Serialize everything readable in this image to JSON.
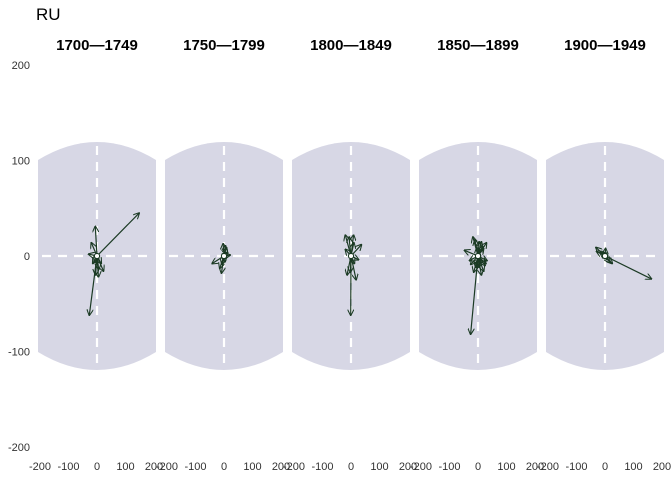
{
  "chart_data": {
    "type": "vector-field",
    "title": "RU",
    "panels": [
      {
        "label": "1700—1749",
        "vectors": [
          [
            148,
            45
          ],
          [
            -27,
            -62
          ],
          [
            -30,
            2
          ],
          [
            -20,
            14
          ],
          [
            -6,
            31
          ],
          [
            15,
            -8
          ],
          [
            23,
            -16
          ],
          [
            -5,
            -20
          ],
          [
            5,
            -22
          ],
          [
            -15,
            -8
          ],
          [
            6,
            -14
          ],
          [
            -10,
            -6
          ]
        ]
      },
      {
        "label": "1750—1799",
        "vectors": [
          [
            -42,
            -8
          ],
          [
            22,
            1
          ],
          [
            -3,
            13
          ],
          [
            5,
            11
          ],
          [
            9,
            9
          ],
          [
            -9,
            -18
          ],
          [
            -15,
            -13
          ],
          [
            -7,
            -9
          ],
          [
            4,
            -6
          ],
          [
            13,
            4
          ]
        ]
      },
      {
        "label": "1800—1849",
        "vectors": [
          [
            -1,
            -62
          ],
          [
            37,
            12
          ],
          [
            -7,
            20
          ],
          [
            9,
            22
          ],
          [
            -20,
            22
          ],
          [
            18,
            -25
          ],
          [
            -14,
            -20
          ],
          [
            -20,
            7
          ],
          [
            27,
            -4
          ],
          [
            12,
            -8
          ],
          [
            -2,
            -17
          ],
          [
            10,
            14
          ]
        ]
      },
      {
        "label": "1850—1899",
        "vectors": [
          [
            -26,
            -82
          ],
          [
            -48,
            6
          ],
          [
            30,
            14
          ],
          [
            -18,
            20
          ],
          [
            -11,
            17
          ],
          [
            12,
            15
          ],
          [
            28,
            -8
          ],
          [
            32,
            -5
          ],
          [
            25,
            -10
          ],
          [
            -26,
            -9
          ],
          [
            -15,
            -17
          ],
          [
            5,
            -12
          ],
          [
            20,
            -16
          ],
          [
            -1,
            -12
          ],
          [
            8,
            -5
          ],
          [
            -4,
            9
          ],
          [
            16,
            10
          ],
          [
            -30,
            -5
          ],
          [
            20,
            8
          ],
          [
            12,
            -20
          ],
          [
            -8,
            -12
          ],
          [
            4,
            15
          ]
        ]
      },
      {
        "label": "1900—1949",
        "vectors": [
          [
            163,
            -24
          ],
          [
            -32,
            9
          ],
          [
            -30,
            5
          ],
          [
            -18,
            4
          ],
          [
            2,
            8
          ],
          [
            18,
            -7
          ],
          [
            10,
            -4
          ],
          [
            26,
            -8
          ],
          [
            7,
            -3
          ],
          [
            -6,
            4
          ]
        ]
      }
    ],
    "xlim": [
      -200,
      200
    ],
    "ylim": [
      -200,
      200
    ],
    "xticks": [
      -200,
      -100,
      0,
      100,
      200
    ],
    "yticks": [
      200,
      100,
      0,
      -100,
      -200
    ],
    "background_region": {
      "half_width": 200,
      "half_height": 100
    },
    "colors": {
      "arrow": "#1b3a24",
      "region": "#d7d7e5",
      "zero_line": "#ffffff",
      "text": "#333333"
    }
  }
}
